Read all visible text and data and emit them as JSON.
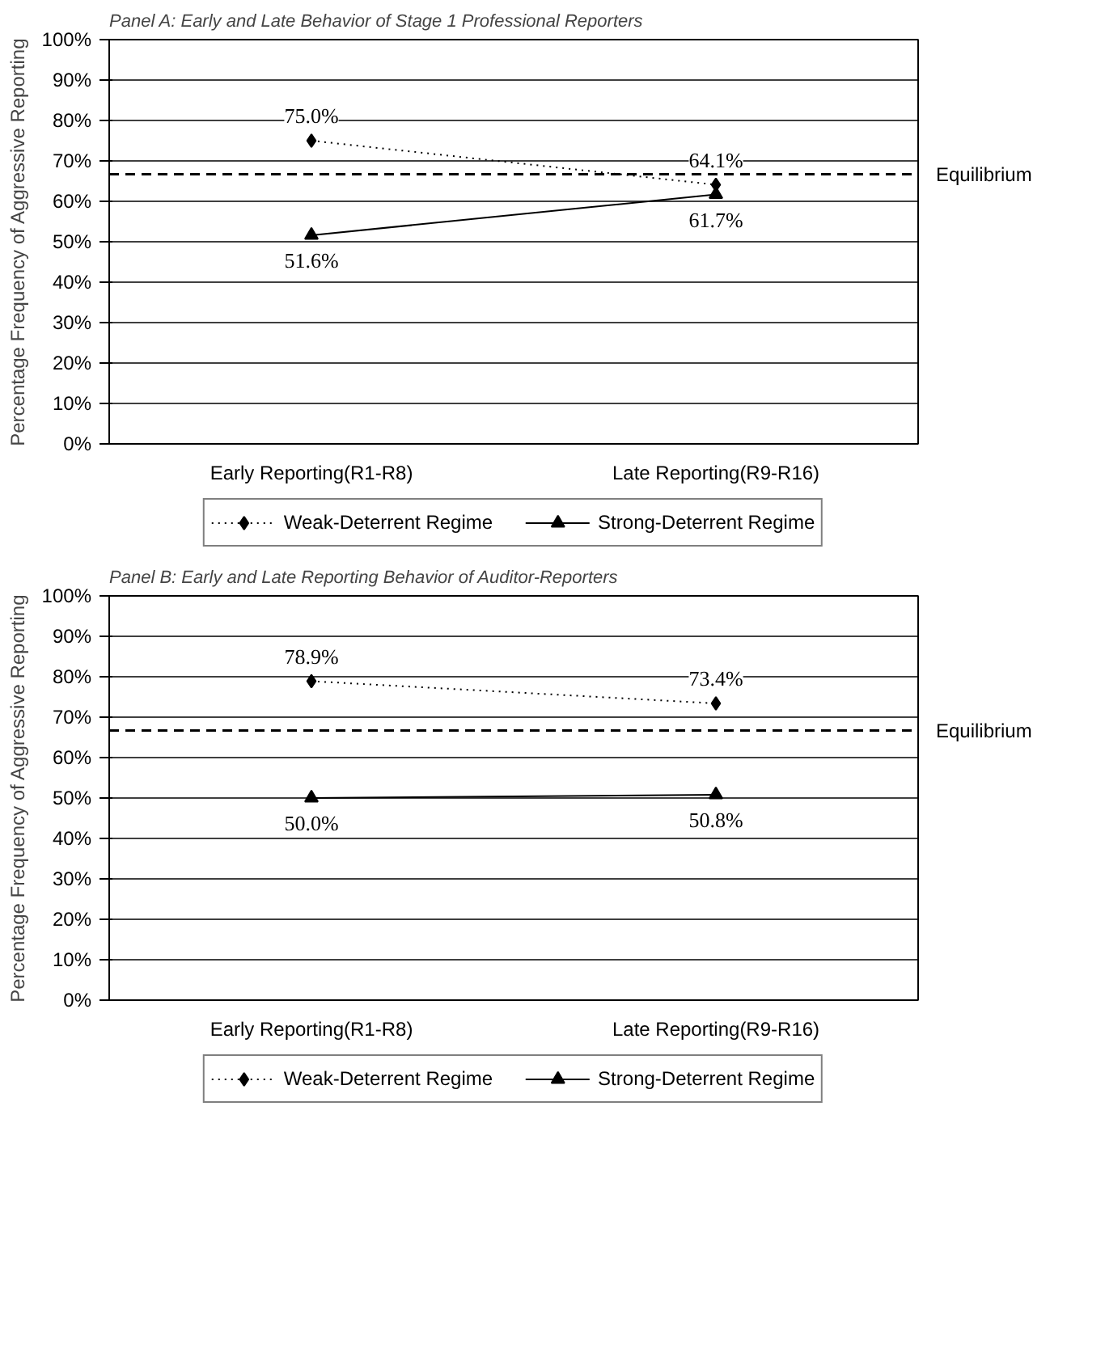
{
  "chart_data": [
    {
      "type": "line",
      "title": "Panel A:  Early and Late Behavior of Stage 1 Professional Reporters",
      "ylabel": "Percentage Frequency of Aggressive Reporting",
      "categories": [
        "Early Reporting(R1-R8)",
        "Late Reporting(R9-R16)"
      ],
      "series": [
        {
          "name": "Weak-Deterrent Regime",
          "color": "#000000",
          "values": [
            75.0,
            64.1
          ],
          "value_labels": [
            "75.0%",
            "64.1%"
          ],
          "marker": "diamond",
          "line_style": "dotted"
        },
        {
          "name": "Strong-Deterrent Regime",
          "color": "#000000",
          "values": [
            51.6,
            61.7
          ],
          "value_labels": [
            "51.6%",
            "61.7%"
          ],
          "marker": "triangle",
          "line_style": "solid"
        }
      ],
      "ylim": [
        0,
        100
      ],
      "yticks": [
        {
          "value": 0,
          "label": "0%"
        },
        {
          "value": 10,
          "label": "10%"
        },
        {
          "value": 20,
          "label": "20%"
        },
        {
          "value": 30,
          "label": "30%"
        },
        {
          "value": 40,
          "label": "40%"
        },
        {
          "value": 50,
          "label": "50%"
        },
        {
          "value": 60,
          "label": "60%"
        },
        {
          "value": 70,
          "label": "70%"
        },
        {
          "value": 80,
          "label": "80%"
        },
        {
          "value": 90,
          "label": "90%"
        },
        {
          "value": 100,
          "label": "100%"
        }
      ],
      "ref_lines": [
        {
          "axis": "y",
          "value": 66.7,
          "label": "Equilibrium",
          "color": "#000000",
          "line_style": "dashed"
        }
      ],
      "grid": "y",
      "legend": "bottom"
    },
    {
      "type": "line",
      "title": "Panel B:  Early and Late Reporting Behavior of Auditor-Reporters",
      "ylabel": "Percentage Frequency of Aggressive Reporting",
      "categories": [
        "Early Reporting(R1-R8)",
        "Late Reporting(R9-R16)"
      ],
      "series": [
        {
          "name": "Weak-Deterrent Regime",
          "color": "#000000",
          "values": [
            78.9,
            73.4
          ],
          "value_labels": [
            "78.9%",
            "73.4%"
          ],
          "marker": "diamond",
          "line_style": "dotted"
        },
        {
          "name": "Strong-Deterrent Regime",
          "color": "#000000",
          "values": [
            50.0,
            50.8
          ],
          "value_labels": [
            "50.0%",
            "50.8%"
          ],
          "marker": "triangle",
          "line_style": "solid"
        }
      ],
      "ylim": [
        0,
        100
      ],
      "yticks": [
        {
          "value": 0,
          "label": "0%"
        },
        {
          "value": 10,
          "label": "10%"
        },
        {
          "value": 20,
          "label": "20%"
        },
        {
          "value": 30,
          "label": "30%"
        },
        {
          "value": 40,
          "label": "40%"
        },
        {
          "value": 50,
          "label": "50%"
        },
        {
          "value": 60,
          "label": "60%"
        },
        {
          "value": 70,
          "label": "70%"
        },
        {
          "value": 80,
          "label": "80%"
        },
        {
          "value": 90,
          "label": "90%"
        },
        {
          "value": 100,
          "label": "100%"
        }
      ],
      "ref_lines": [
        {
          "axis": "y",
          "value": 66.7,
          "label": "Equilibrium",
          "color": "#000000",
          "line_style": "dashed"
        }
      ],
      "grid": "y",
      "legend": "bottom"
    }
  ]
}
